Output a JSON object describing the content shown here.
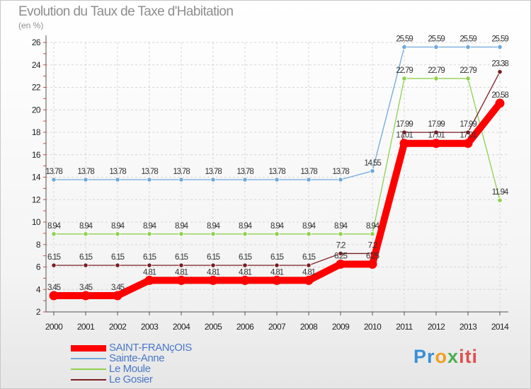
{
  "chart_data": {
    "type": "line",
    "title": "Evolution du Taux de Taxe d'Habitation",
    "ylabel": "(en %)",
    "xlabel": "",
    "ylim": [
      2,
      26
    ],
    "yticks": [
      2,
      4,
      6,
      8,
      10,
      12,
      14,
      16,
      18,
      20,
      22,
      24,
      26
    ],
    "categories": [
      "2000",
      "2001",
      "2002",
      "2003",
      "2004",
      "2005",
      "2006",
      "2007",
      "2008",
      "2009",
      "2010",
      "2011",
      "2012",
      "2013",
      "2014"
    ],
    "series": [
      {
        "name": "SAINT-FRANçOIS",
        "color": "#ff0000",
        "values": [
          3.45,
          3.45,
          3.45,
          4.81,
          4.81,
          4.81,
          4.81,
          4.81,
          4.81,
          6.25,
          6.25,
          17.01,
          17.01,
          17.01,
          20.58
        ],
        "labels": [
          "3.45",
          "3.45",
          "3.45",
          "4.81",
          "4.81",
          "4.81",
          "4.81",
          "4.81",
          "4.81",
          "6.25",
          "6.25",
          "17.01",
          "17.01",
          "17.01",
          "20.58"
        ]
      },
      {
        "name": "Sainte-Anne",
        "color": "#6fa8dc",
        "values": [
          13.78,
          13.78,
          13.78,
          13.78,
          13.78,
          13.78,
          13.78,
          13.78,
          13.78,
          13.78,
          14.55,
          25.59,
          25.59,
          25.59,
          25.59
        ],
        "labels": [
          "13.78",
          "13.78",
          "13.78",
          "13.78",
          "13.78",
          "13.78",
          "13.78",
          "13.78",
          "13.78",
          "13.78",
          "14.55",
          "25.59",
          "25.59",
          "25.59",
          "25.59"
        ]
      },
      {
        "name": "Le Moule",
        "color": "#8fd14f",
        "values": [
          8.94,
          8.94,
          8.94,
          8.94,
          8.94,
          8.94,
          8.94,
          8.94,
          8.94,
          8.94,
          8.94,
          22.79,
          22.79,
          22.79,
          11.94
        ],
        "labels": [
          "8.94",
          "8.94",
          "8.94",
          "8.94",
          "8.94",
          "8.94",
          "8.94",
          "8.94",
          "8.94",
          "8.94",
          "8.94",
          "22.79",
          "22.79",
          "22.79",
          "11.94"
        ]
      },
      {
        "name": "Le Gosier",
        "color": "#7a1f24",
        "values": [
          6.15,
          6.15,
          6.15,
          6.15,
          6.15,
          6.15,
          6.15,
          6.15,
          6.15,
          7.2,
          7.2,
          17.99,
          17.99,
          17.99,
          23.38
        ],
        "labels": [
          "6.15",
          "6.15",
          "6.15",
          "6.15",
          "6.15",
          "6.15",
          "6.15",
          "6.15",
          "6.15",
          "7.2",
          "7.2",
          "17.99",
          "17.99",
          "17.99",
          "23.38"
        ]
      }
    ]
  },
  "legend": {
    "items": [
      {
        "label": "SAINT-FRANçOIS",
        "color": "#ff0000",
        "text_color": "#4a78c8"
      },
      {
        "label": "Sainte-Anne",
        "color": "#6fa8dc",
        "text_color": "#4a78c8"
      },
      {
        "label": "Le Moule",
        "color": "#8fd14f",
        "text_color": "#4a78c8"
      },
      {
        "label": "Le Gosier",
        "color": "#7a1f24",
        "text_color": "#4a78c8"
      }
    ]
  },
  "brand": {
    "p1": "Pr",
    "p2": "o",
    "p3": "x",
    "p4": "iti"
  }
}
